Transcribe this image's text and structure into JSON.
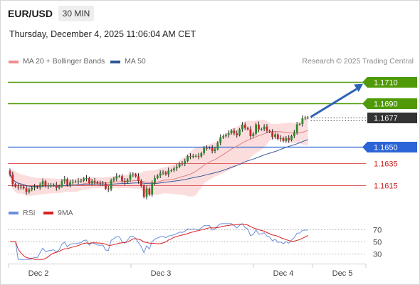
{
  "header": {
    "symbol": "EUR/USD",
    "timeframe": "30 MIN",
    "datetime": "Thursday, December 4, 2025 11:06:04 AM CET"
  },
  "legend": {
    "ma20": "MA 20 + Bollinger Bands",
    "ma50": "MA 50",
    "credit": "Research © 2025 Trading Central"
  },
  "rsi_legend": {
    "rsi": "RSI",
    "ma": "9MA"
  },
  "colors": {
    "up": "#2c8a2c",
    "down": "#c8282c",
    "wick": "#222222",
    "target": "#4f9a06",
    "pivot": "#2b64d6",
    "support": "#e06060",
    "ma20": "#e08080",
    "ma50": "#3a5a9a",
    "band": "#fbd2d2",
    "rsi": "#6a8fdc",
    "rsi_ma": "#d82020",
    "current": "#333333",
    "arrow": "#2e62b6"
  },
  "chart_data": [
    {
      "type": "candlestick",
      "title": "EUR/USD",
      "x_labels": [
        "Dec 2",
        "Dec 3",
        "Dec 4",
        "Dec 5"
      ],
      "ylim": [
        1.1595,
        1.1725
      ],
      "levels": [
        {
          "value": 1.171,
          "label": "1.1710",
          "kind": "target"
        },
        {
          "value": 1.169,
          "label": "1.1690",
          "kind": "target"
        },
        {
          "value": 1.1677,
          "label": "1.1677",
          "kind": "current"
        },
        {
          "value": 1.165,
          "label": "1.1650",
          "kind": "pivot"
        },
        {
          "value": 1.1635,
          "label": "1.1635",
          "kind": "support"
        },
        {
          "value": 1.1615,
          "label": "1.1615",
          "kind": "support"
        }
      ],
      "closes": [
        1.16246,
        1.16157,
        1.16134,
        1.16126,
        1.16135,
        1.16119,
        1.16085,
        1.16107,
        1.16124,
        1.16131,
        1.16126,
        1.16152,
        1.16184,
        1.16137,
        1.16143,
        1.16147,
        1.16151,
        1.16122,
        1.16138,
        1.16185,
        1.16205,
        1.16147,
        1.16176,
        1.1618,
        1.16181,
        1.16185,
        1.16189,
        1.16209,
        1.16212,
        1.16166,
        1.16187,
        1.16177,
        1.16165,
        1.16163,
        1.16164,
        1.16115,
        1.16109,
        1.16191,
        1.1621,
        1.1623,
        1.1623,
        1.16187,
        1.16173,
        1.162,
        1.16242,
        1.16246,
        1.16229,
        1.16187,
        1.16141,
        1.16041,
        1.16116,
        1.16061,
        1.16169,
        1.16213,
        1.16236,
        1.16258,
        1.16265,
        1.16248,
        1.16281,
        1.16284,
        1.16302,
        1.16317,
        1.16348,
        1.16344,
        1.16369,
        1.16415,
        1.16411,
        1.16416,
        1.16417,
        1.16412,
        1.16442,
        1.1649,
        1.16489,
        1.16493,
        1.16462,
        1.16479,
        1.16539,
        1.16589,
        1.16599,
        1.16611,
        1.16625,
        1.16651,
        1.16625,
        1.16608,
        1.16663,
        1.16705,
        1.16674,
        1.16663,
        1.166,
        1.16622,
        1.16707,
        1.16661,
        1.16665,
        1.16687,
        1.16649,
        1.16638,
        1.16593,
        1.16615,
        1.16574,
        1.1658,
        1.16556,
        1.16581,
        1.16562,
        1.16601,
        1.16634,
        1.16708,
        1.16712,
        1.16764,
        1.16769,
        1.1677
      ]
    },
    {
      "type": "line",
      "title": "RSI",
      "series": [
        {
          "name": "RSI"
        },
        {
          "name": "9MA"
        }
      ],
      "y_ticks": [
        70,
        50,
        30
      ],
      "ylim": [
        20,
        80
      ]
    }
  ]
}
